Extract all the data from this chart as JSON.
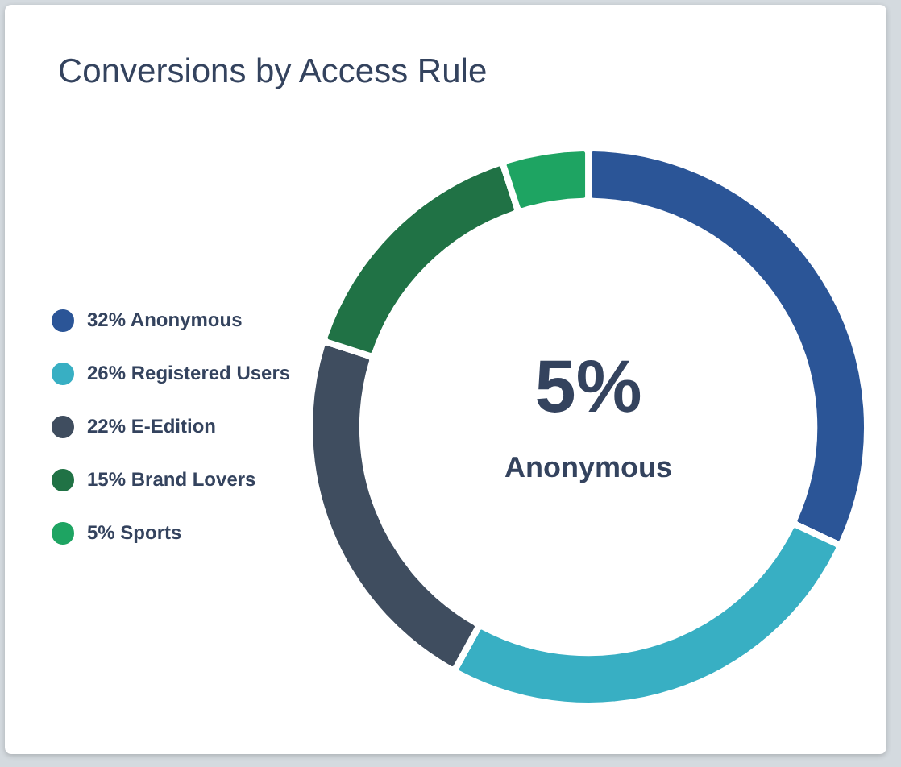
{
  "chart_data": {
    "type": "donut",
    "title": "Conversions by Access Rule",
    "categories": [
      "32% Anonymous",
      "26% Registered Users",
      "22% E-Edition",
      "15% Brand Lovers",
      "5% Sports"
    ],
    "values": [
      32,
      26,
      22,
      15,
      5
    ],
    "colors": [
      "#2b5597",
      "#38afc3",
      "#3f4d5f",
      "#207245",
      "#1ea462"
    ],
    "legend": "left",
    "annotations": [
      "5%",
      "Anonymous"
    ]
  }
}
